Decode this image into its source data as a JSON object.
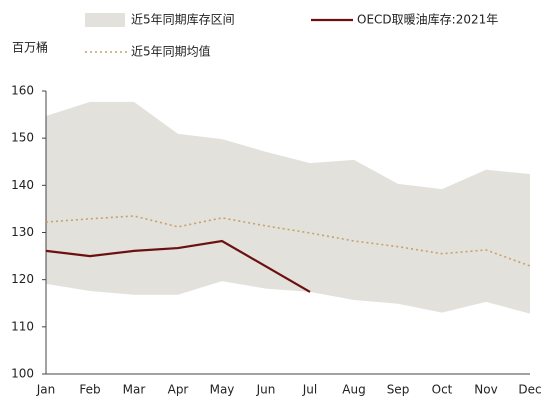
{
  "chart_data": {
    "type": "line",
    "y_label": "百万桶",
    "categories": [
      "Jan",
      "Feb",
      "Mar",
      "Apr",
      "May",
      "Jun",
      "Jul",
      "Aug",
      "Sep",
      "Oct",
      "Nov",
      "Dec"
    ],
    "series": [
      {
        "name": "近5年同期库存区间",
        "color": "#e3e1dc",
        "kind": "band",
        "high": [
          154.7,
          157.7,
          157.7,
          150.9,
          149.8,
          147.1,
          144.7,
          145.4,
          140.3,
          139.2,
          143.3,
          142.4
        ],
        "low": [
          119.1,
          117.6,
          116.8,
          116.8,
          119.7,
          118.1,
          117.4,
          115.7,
          114.9,
          113.0,
          115.3,
          112.8
        ]
      },
      {
        "name": "OECD取暖油库存:2021年",
        "color": "#6b1010",
        "kind": "solid",
        "values": [
          126.1,
          125.0,
          126.1,
          126.7,
          128.2,
          122.8,
          117.4,
          null,
          null,
          null,
          null,
          null
        ]
      },
      {
        "name": "近5年同期均值",
        "color": "#c8a06a",
        "kind": "dotted",
        "values": [
          132.2,
          132.9,
          133.5,
          131.2,
          133.1,
          131.4,
          129.9,
          128.2,
          127.0,
          125.5,
          126.3,
          122.9
        ]
      }
    ],
    "ylim": [
      100,
      160
    ],
    "yticks": [
      100,
      110,
      120,
      130,
      140,
      150,
      160
    ],
    "grid": false
  }
}
